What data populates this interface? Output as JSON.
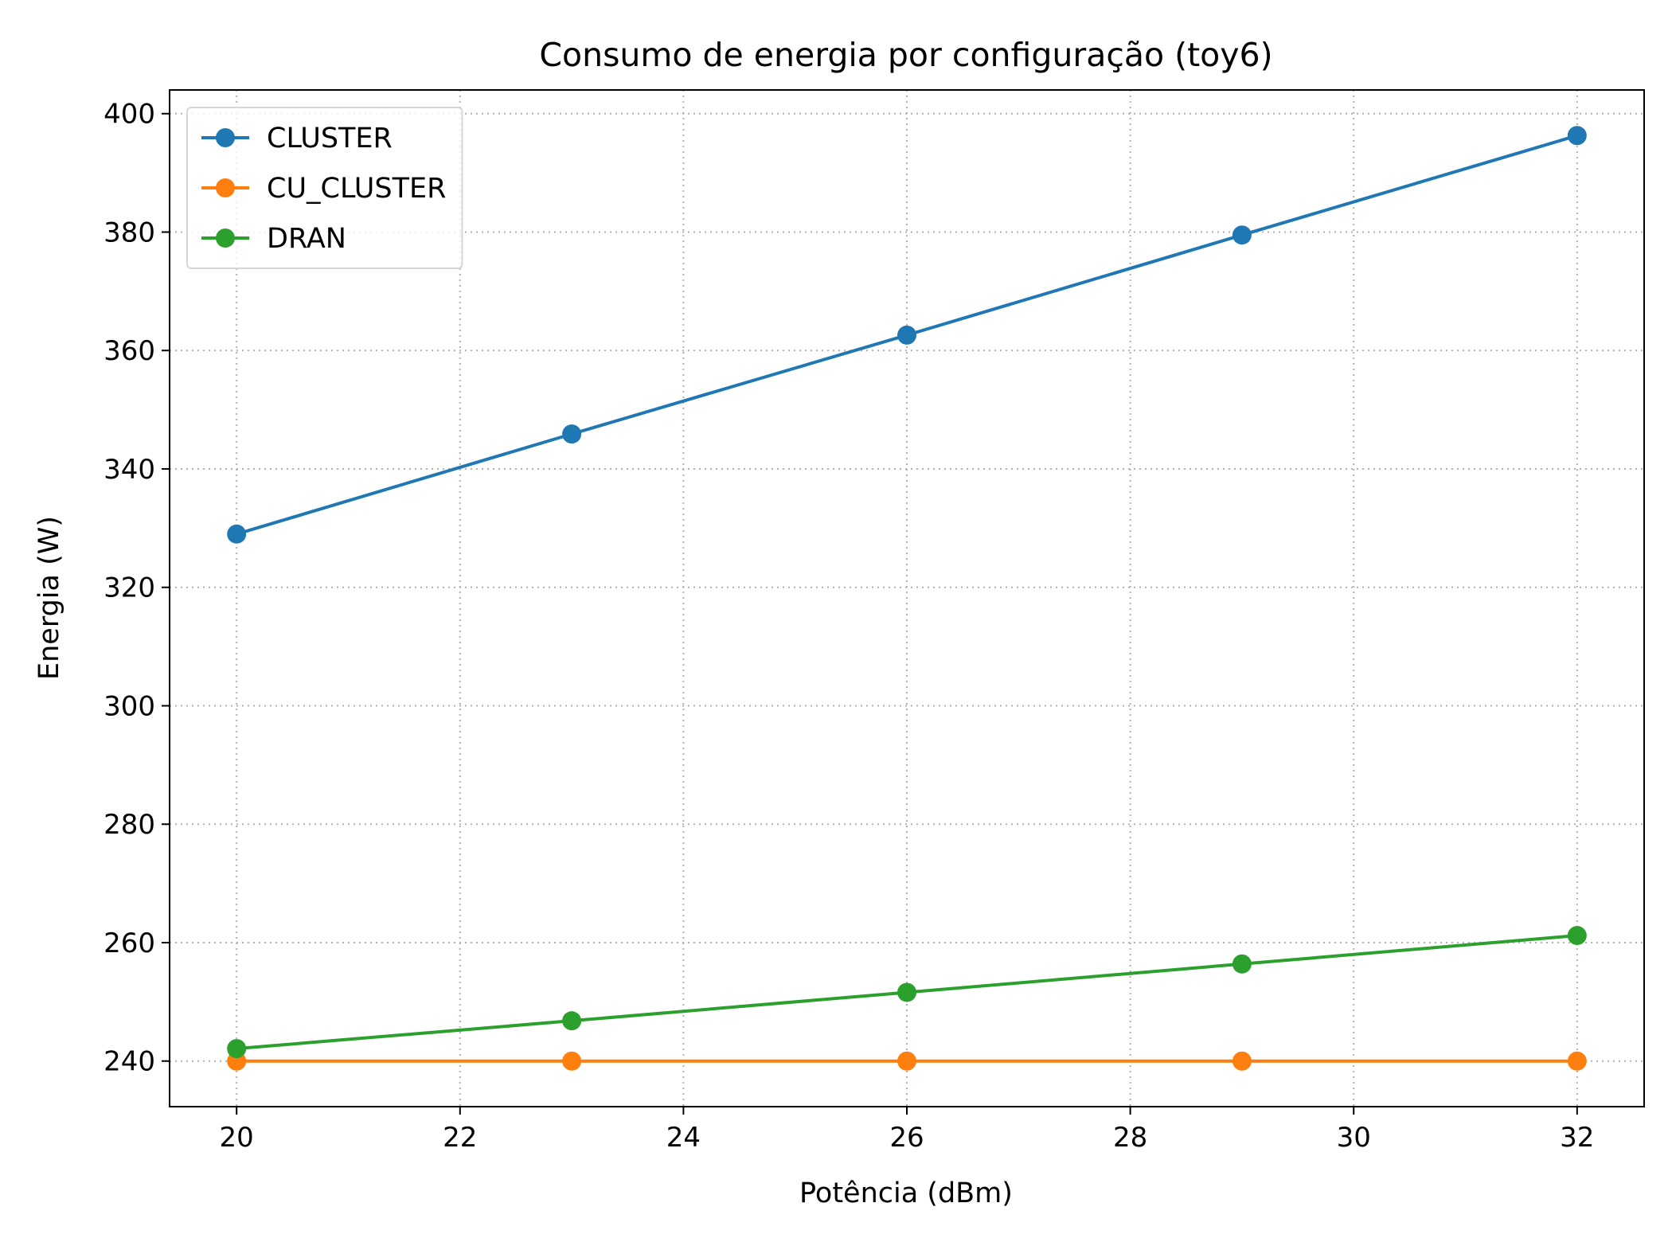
{
  "chart_data": {
    "type": "line",
    "title": "Consumo de energia por configuração (toy6)",
    "xlabel": "Potência (dBm)",
    "ylabel": "Energia (W)",
    "xlim": [
      19.4,
      32.6
    ],
    "ylim": [
      232.3,
      404.0
    ],
    "xticks": [
      20,
      22,
      24,
      26,
      28,
      30,
      32
    ],
    "yticks": [
      240,
      260,
      280,
      300,
      320,
      340,
      360,
      380,
      400
    ],
    "grid": true,
    "legend_position": "top-left",
    "x": [
      20,
      23,
      26,
      29,
      32
    ],
    "series": [
      {
        "name": "CLUSTER",
        "color": "#1f77b4",
        "values": [
          329.0,
          345.9,
          362.6,
          379.5,
          396.3
        ]
      },
      {
        "name": "CU_CLUSTER",
        "color": "#ff7f0e",
        "values": [
          240.0,
          240.0,
          240.0,
          240.0,
          240.0
        ]
      },
      {
        "name": "DRAN",
        "color": "#2ca02c",
        "values": [
          242.1,
          246.8,
          251.6,
          256.4,
          261.2
        ]
      }
    ]
  }
}
